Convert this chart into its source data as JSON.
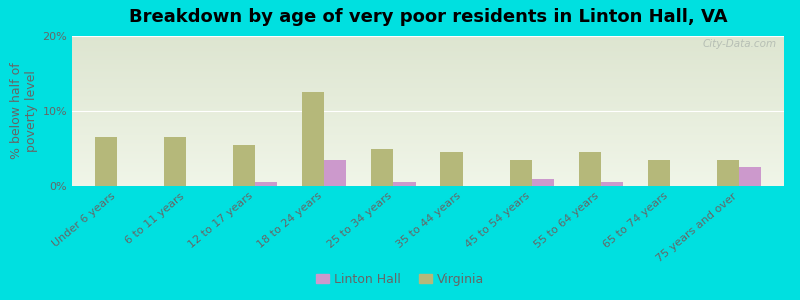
{
  "title": "Breakdown by age of very poor residents in Linton Hall, VA",
  "ylabel": "% below half of\npoverty level",
  "categories": [
    "Under 6 years",
    "6 to 11 years",
    "12 to 17 years",
    "18 to 24 years",
    "25 to 34 years",
    "35 to 44 years",
    "45 to 54 years",
    "55 to 64 years",
    "65 to 74 years",
    "75 years and over"
  ],
  "linton_hall": [
    0.0,
    0.0,
    0.5,
    3.5,
    0.5,
    0.0,
    1.0,
    0.5,
    0.0,
    2.5
  ],
  "virginia": [
    6.5,
    6.5,
    5.5,
    12.5,
    5.0,
    4.5,
    3.5,
    4.5,
    3.5,
    3.5
  ],
  "linton_color": "#cc99cc",
  "virginia_color": "#b5b87a",
  "background_outer": "#00e0e0",
  "background_plot_top": "#dde5d0",
  "background_plot_bottom": "#f0f5e8",
  "ylim": [
    0,
    20
  ],
  "yticks": [
    0,
    10,
    20
  ],
  "ytick_labels": [
    "0%",
    "10%",
    "20%"
  ],
  "title_fontsize": 13,
  "axis_label_fontsize": 9,
  "tick_fontsize": 8,
  "legend_fontsize": 9,
  "watermark": "City-Data.com"
}
